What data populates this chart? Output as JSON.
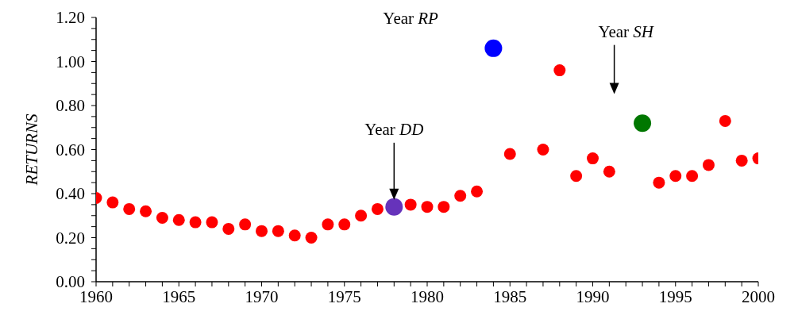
{
  "chart_data": {
    "type": "scatter",
    "ylabel": "RETURNS",
    "marker": "circle",
    "grid": false,
    "legend": false,
    "xlim": [
      1960,
      2000
    ],
    "xticks": [
      1960,
      {
        "value": 1961,
        "label": null
      },
      {
        "value": 1962,
        "label": null
      },
      {
        "value": 1963,
        "label": null
      },
      {
        "value": 1964,
        "label": null
      },
      1965,
      {
        "value": 1966,
        "label": null
      },
      {
        "value": 1967,
        "label": null
      },
      {
        "value": 1968,
        "label": null
      },
      {
        "value": 1969,
        "label": null
      },
      1970,
      {
        "value": 1971,
        "label": null
      },
      {
        "value": 1972,
        "label": null
      },
      {
        "value": 1973,
        "label": null
      },
      {
        "value": 1974,
        "label": null
      },
      1975,
      {
        "value": 1976,
        "label": null
      },
      {
        "value": 1977,
        "label": null
      },
      {
        "value": 1978,
        "label": null
      },
      {
        "value": 1979,
        "label": null
      },
      1980,
      {
        "value": 1981,
        "label": null
      },
      {
        "value": 1982,
        "label": null
      },
      {
        "value": 1983,
        "label": null
      },
      {
        "value": 1984,
        "label": null
      },
      1985,
      {
        "value": 1986,
        "label": null
      },
      {
        "value": 1987,
        "label": null
      },
      {
        "value": 1988,
        "label": null
      },
      {
        "value": 1989,
        "label": null
      },
      1990,
      {
        "value": 1991,
        "label": null
      },
      {
        "value": 1992,
        "label": null
      },
      {
        "value": 1993,
        "label": null
      },
      {
        "value": 1994,
        "label": null
      },
      1995,
      {
        "value": 1996,
        "label": null
      },
      {
        "value": 1997,
        "label": null
      },
      {
        "value": 1998,
        "label": null
      },
      {
        "value": 1999,
        "label": null
      },
      2000
    ],
    "ylim": [
      0,
      1.2
    ],
    "yticks": [
      {
        "value": 0,
        "label": "0.00"
      },
      {
        "value": 0.05,
        "label": null
      },
      {
        "value": 0.1,
        "label": null
      },
      {
        "value": 0.15,
        "label": null
      },
      {
        "value": 0.2,
        "label": "0.20"
      },
      {
        "value": 0.25,
        "label": null
      },
      {
        "value": 0.3,
        "label": null
      },
      {
        "value": 0.35,
        "label": null
      },
      {
        "value": 0.4,
        "label": "0.40"
      },
      {
        "value": 0.45,
        "label": null
      },
      {
        "value": 0.5,
        "label": null
      },
      {
        "value": 0.55,
        "label": null
      },
      {
        "value": 0.6,
        "label": "0.60"
      },
      {
        "value": 0.65,
        "label": null
      },
      {
        "value": 0.7,
        "label": null
      },
      {
        "value": 0.75,
        "label": null
      },
      {
        "value": 0.8,
        "label": "0.80"
      },
      {
        "value": 0.85,
        "label": null
      },
      {
        "value": 0.9,
        "label": null
      },
      {
        "value": 0.95,
        "label": null
      },
      {
        "value": 1.0,
        "label": "1.00"
      },
      {
        "value": 1.05,
        "label": null
      },
      {
        "value": 1.1,
        "label": null
      },
      {
        "value": 1.15,
        "label": null
      },
      {
        "value": 1.2,
        "label": "1.20"
      }
    ],
    "series": [
      {
        "color": "#ff0000",
        "x": [
          1960,
          1961,
          1962,
          1963,
          1964,
          1965,
          1966,
          1967,
          1968,
          1969,
          1970,
          1971,
          1972,
          1973,
          1974,
          1975,
          1976,
          1977,
          1979,
          1980,
          1981,
          1982,
          1983,
          1985,
          1987,
          1988,
          1989,
          1990,
          1991,
          1994,
          1995,
          1996,
          1997,
          1998,
          1999,
          2000
        ],
        "values": [
          0.38,
          0.36,
          0.33,
          0.32,
          0.29,
          0.28,
          0.27,
          0.27,
          0.24,
          0.26,
          0.23,
          0.23,
          0.21,
          0.2,
          0.26,
          0.26,
          0.3,
          0.33,
          0.35,
          0.34,
          0.34,
          0.39,
          0.41,
          0.58,
          0.6,
          0.96,
          0.48,
          0.56,
          0.5,
          0.45,
          0.48,
          0.48,
          0.53,
          0.73,
          0.55,
          0.56
        ]
      },
      {
        "color": "#6633bb",
        "x": [
          1978
        ],
        "values": [
          0.34
        ]
      },
      {
        "color": "#0000ff",
        "x": [
          1984
        ],
        "values": [
          1.06
        ]
      },
      {
        "color": "#007700",
        "x": [
          1993
        ],
        "values": [
          0.72
        ]
      }
    ],
    "annotations": [
      "Year DD",
      "Year RP",
      "Year SH"
    ]
  }
}
